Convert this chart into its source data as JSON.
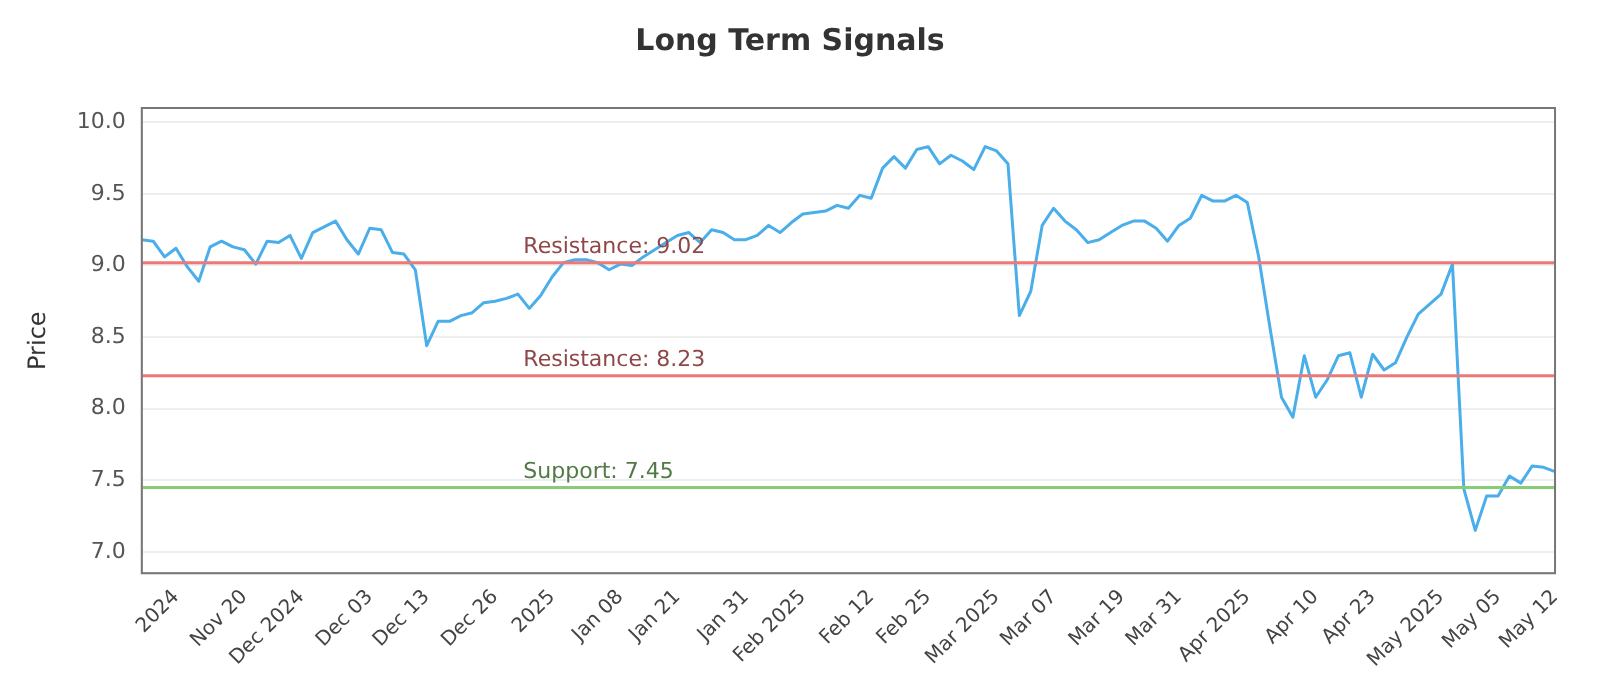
{
  "chart_data": {
    "type": "line",
    "title": "Long Term Signals",
    "ylabel": "Price",
    "categories": [
      null,
      null,
      null,
      "2024",
      null,
      null,
      null,
      null,
      null,
      "Nov 20",
      null,
      null,
      null,
      null,
      "Dec 2024",
      null,
      null,
      null,
      null,
      null,
      "Dec 03",
      null,
      null,
      null,
      null,
      "Dec 13",
      null,
      null,
      null,
      null,
      null,
      "Dec 26",
      null,
      null,
      null,
      null,
      "2025",
      null,
      null,
      null,
      null,
      null,
      "Jan 08",
      null,
      null,
      null,
      null,
      "Jan 21",
      null,
      null,
      null,
      null,
      null,
      "Jan 31",
      null,
      null,
      null,
      null,
      "Feb 2025",
      null,
      null,
      null,
      null,
      null,
      "Feb 12",
      null,
      null,
      null,
      null,
      "Feb 25",
      null,
      null,
      null,
      null,
      null,
      "Mar 2025",
      null,
      null,
      null,
      null,
      "Mar 07",
      null,
      null,
      null,
      null,
      null,
      "Mar 19",
      null,
      null,
      null,
      null,
      "Mar 31",
      null,
      null,
      null,
      null,
      null,
      "Apr 2025",
      null,
      null,
      null,
      null,
      null,
      "Apr 10",
      null,
      null,
      null,
      null,
      "Apr 23",
      null,
      null,
      null,
      null,
      null,
      "May 2025",
      null,
      null,
      null,
      null,
      "May 05",
      null,
      null,
      null,
      null,
      "May 12"
    ],
    "series": [
      {
        "color": "#4aaeea",
        "values": [
          9.18,
          9.17,
          9.06,
          9.12,
          8.99,
          8.89,
          9.13,
          9.17,
          9.13,
          9.11,
          9.01,
          9.17,
          9.16,
          9.21,
          9.05,
          9.23,
          9.27,
          9.31,
          9.18,
          9.08,
          9.26,
          9.25,
          9.09,
          9.08,
          8.97,
          8.44,
          8.61,
          8.61,
          8.65,
          8.67,
          8.74,
          8.75,
          8.77,
          8.8,
          8.7,
          8.79,
          8.92,
          9.02,
          9.04,
          9.04,
          9.02,
          8.97,
          9.01,
          9.0,
          9.06,
          9.11,
          9.16,
          9.21,
          9.23,
          9.16,
          9.25,
          9.23,
          9.18,
          9.18,
          9.21,
          9.28,
          9.23,
          9.3,
          9.36,
          9.37,
          9.38,
          9.42,
          9.4,
          9.49,
          9.47,
          9.68,
          9.76,
          9.68,
          9.81,
          9.83,
          9.71,
          9.77,
          9.73,
          9.67,
          9.83,
          9.8,
          9.71,
          8.65,
          8.82,
          9.28,
          9.4,
          9.31,
          9.25,
          9.16,
          9.18,
          9.23,
          9.28,
          9.31,
          9.31,
          9.26,
          9.17,
          9.28,
          9.33,
          9.49,
          9.45,
          9.45,
          9.49,
          9.44,
          9.06,
          8.56,
          8.08,
          7.94,
          8.37,
          8.08,
          8.2,
          8.37,
          8.39,
          8.08,
          8.38,
          8.27,
          8.32,
          8.5,
          8.66,
          8.73,
          8.8,
          9.01,
          7.44,
          7.15,
          7.39,
          7.39,
          7.53,
          7.48,
          7.6,
          7.59,
          7.56
        ]
      }
    ],
    "ylim": [
      6.85,
      10.1
    ],
    "yticks": [
      {
        "value": 7,
        "label": "7.0"
      },
      7.5,
      {
        "value": 8,
        "label": "8.0"
      },
      8.5,
      {
        "value": 9,
        "label": "9.0"
      },
      9.5,
      {
        "value": 10,
        "label": "10.0"
      }
    ],
    "grid": "y",
    "marker": "none",
    "line_style": "solid",
    "ref_lines": [
      {
        "axis": "y",
        "value": 9.02,
        "label": "Resistance: 9.02",
        "color": "#ee7777"
      },
      {
        "axis": "y",
        "value": 8.23,
        "label": "Resistance: 8.23",
        "color": "#ee7777"
      },
      {
        "axis": "y",
        "value": 7.45,
        "label": "Support: 7.45",
        "color": "#88cc77"
      }
    ]
  }
}
